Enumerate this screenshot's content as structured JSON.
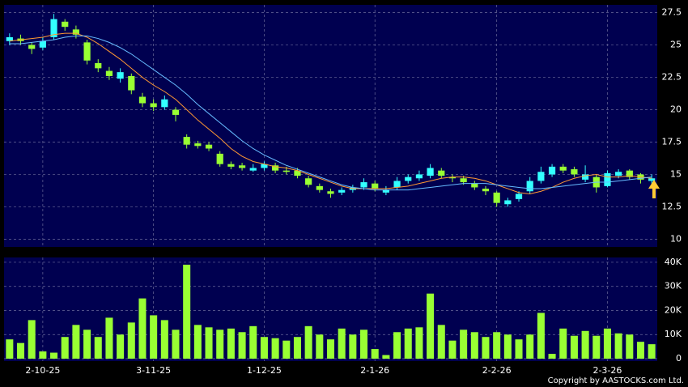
{
  "chart_data": [
    {
      "type": "candlestick",
      "categories": [
        null,
        null,
        null,
        "2-10-25",
        null,
        null,
        null,
        null,
        null,
        null,
        null,
        null,
        null,
        "3-11-25",
        null,
        null,
        null,
        null,
        null,
        null,
        null,
        null,
        null,
        "1-12-25",
        null,
        null,
        null,
        null,
        null,
        null,
        null,
        null,
        null,
        "2-1-26",
        null,
        null,
        null,
        null,
        null,
        null,
        null,
        null,
        null,
        null,
        "2-2-26",
        null,
        null,
        null,
        null,
        null,
        null,
        null,
        null,
        null,
        "2-3-26",
        null,
        null,
        null,
        null
      ],
      "open": [
        25.3,
        25.5,
        25.0,
        24.8,
        25.6,
        26.8,
        26.2,
        25.2,
        23.6,
        23.0,
        22.4,
        22.6,
        21.0,
        20.5,
        20.2,
        20.0,
        17.9,
        17.4,
        17.3,
        16.6,
        15.8,
        15.7,
        15.3,
        15.5,
        15.7,
        15.3,
        15.3,
        14.7,
        14.1,
        13.7,
        13.6,
        13.8,
        14.0,
        14.3,
        13.6,
        14.0,
        14.5,
        14.7,
        14.9,
        15.3,
        14.8,
        14.7,
        14.3,
        13.9,
        13.6,
        12.7,
        13.1,
        13.7,
        14.5,
        15.0,
        15.6,
        15.4,
        14.6,
        14.8,
        14.1,
        14.9,
        15.3,
        15.0,
        14.5
      ],
      "high": [
        25.9,
        25.8,
        25.2,
        25.6,
        27.4,
        27.0,
        26.5,
        25.4,
        23.9,
        23.3,
        23.2,
        22.8,
        21.3,
        20.8,
        21.1,
        20.2,
        18.1,
        17.6,
        17.5,
        16.8,
        16.0,
        15.9,
        15.8,
        16.0,
        15.9,
        15.6,
        15.5,
        14.9,
        14.3,
        13.9,
        14.0,
        14.2,
        14.7,
        14.5,
        14.1,
        14.8,
        15.0,
        15.3,
        15.8,
        15.5,
        15.0,
        14.9,
        14.5,
        14.1,
        13.7,
        13.2,
        13.7,
        14.8,
        15.6,
        15.8,
        15.8,
        15.6,
        15.7,
        15.0,
        15.3,
        15.4,
        15.4,
        15.1,
        15.0
      ],
      "low": [
        25.0,
        25.0,
        24.3,
        24.6,
        25.4,
        26.1,
        25.5,
        23.5,
        22.9,
        22.3,
        22.1,
        21.2,
        20.2,
        19.9,
        20.0,
        19.1,
        17.0,
        17.0,
        16.8,
        15.6,
        15.4,
        15.3,
        15.2,
        15.3,
        15.1,
        15.0,
        14.7,
        14.0,
        13.6,
        13.2,
        13.4,
        13.6,
        13.8,
        13.7,
        13.4,
        13.8,
        14.3,
        14.5,
        14.7,
        14.7,
        14.4,
        14.2,
        13.8,
        13.4,
        12.5,
        12.5,
        12.9,
        13.5,
        14.3,
        14.8,
        15.1,
        14.8,
        14.4,
        13.6,
        14.0,
        14.7,
        14.6,
        14.3,
        14.3
      ],
      "close": [
        25.6,
        25.3,
        24.7,
        25.3,
        27.0,
        26.4,
        25.8,
        23.8,
        23.2,
        22.6,
        22.9,
        21.5,
        20.5,
        20.2,
        20.8,
        19.6,
        17.3,
        17.2,
        17.0,
        15.8,
        15.6,
        15.5,
        15.5,
        15.8,
        15.3,
        15.2,
        14.9,
        14.2,
        13.8,
        13.5,
        13.8,
        14.0,
        14.4,
        13.9,
        13.8,
        14.5,
        14.8,
        15.0,
        15.5,
        14.9,
        14.7,
        14.4,
        14.0,
        13.7,
        12.8,
        13.0,
        13.5,
        14.5,
        15.2,
        15.6,
        15.3,
        15.0,
        15.0,
        14.0,
        15.1,
        15.2,
        14.8,
        14.6,
        14.7
      ],
      "up_color": "#33ffff",
      "down_color": "#99ff33",
      "lines": [
        {
          "color": "#ff9933",
          "values": [
            25.3,
            25.4,
            25.5,
            25.6,
            25.8,
            25.9,
            25.9,
            25.6,
            25.1,
            24.5,
            23.9,
            23.2,
            22.5,
            21.9,
            21.4,
            20.8,
            20.0,
            19.2,
            18.5,
            17.8,
            17.0,
            16.4,
            16.0,
            15.8,
            15.6,
            15.5,
            15.3,
            15.0,
            14.7,
            14.4,
            14.1,
            13.9,
            13.9,
            13.9,
            13.9,
            14.0,
            14.1,
            14.3,
            14.5,
            14.7,
            14.8,
            14.8,
            14.7,
            14.5,
            14.2,
            13.9,
            13.6,
            13.5,
            13.7,
            14.0,
            14.4,
            14.7,
            14.9,
            15.0,
            14.8,
            14.8,
            14.9,
            14.8,
            14.7
          ]
        },
        {
          "color": "#66bbff",
          "values": [
            25.1,
            25.1,
            25.2,
            25.3,
            25.4,
            25.6,
            25.7,
            25.7,
            25.5,
            25.2,
            24.8,
            24.3,
            23.7,
            23.1,
            22.5,
            21.9,
            21.2,
            20.4,
            19.7,
            19.0,
            18.3,
            17.6,
            17.0,
            16.5,
            16.1,
            15.7,
            15.4,
            15.1,
            14.8,
            14.5,
            14.2,
            14.0,
            13.9,
            13.8,
            13.8,
            13.8,
            13.8,
            13.9,
            14.0,
            14.1,
            14.2,
            14.3,
            14.3,
            14.3,
            14.2,
            14.1,
            14.0,
            13.9,
            13.9,
            14.0,
            14.1,
            14.2,
            14.3,
            14.4,
            14.4,
            14.5,
            14.6,
            14.7,
            14.8
          ]
        }
      ],
      "ylim": [
        9.4,
        28.1
      ],
      "yticks": [
        10,
        12.5,
        15,
        17.5,
        20,
        22.5,
        25,
        27.5
      ],
      "grid": true
    },
    {
      "type": "bar",
      "values": [
        8000,
        6500,
        16000,
        3000,
        2500,
        9000,
        14000,
        12000,
        9000,
        17000,
        10000,
        15000,
        25000,
        18000,
        16000,
        12000,
        39000,
        14000,
        13000,
        12000,
        12500,
        11000,
        13500,
        9000,
        8500,
        7500,
        9000,
        13500,
        10000,
        8000,
        12500,
        10000,
        12000,
        4000,
        1500,
        11000,
        12500,
        13000,
        27000,
        14000,
        7500,
        12000,
        11000,
        9000,
        11000,
        10000,
        8000,
        10000,
        19000,
        2000,
        12500,
        9500,
        11500,
        9500,
        12500,
        10500,
        10000,
        7000,
        6000
      ],
      "color": "#99ff33",
      "ylim": [
        0,
        42000
      ],
      "yticks": [
        0,
        {
          "value": 10000,
          "label": "10K"
        },
        {
          "value": 20000,
          "label": "20K"
        },
        {
          "value": 30000,
          "label": "30K"
        },
        {
          "value": 40000,
          "label": "40K"
        }
      ],
      "grid": true
    }
  ],
  "copyright": "Copyright by AASTOCKS.com Ltd."
}
